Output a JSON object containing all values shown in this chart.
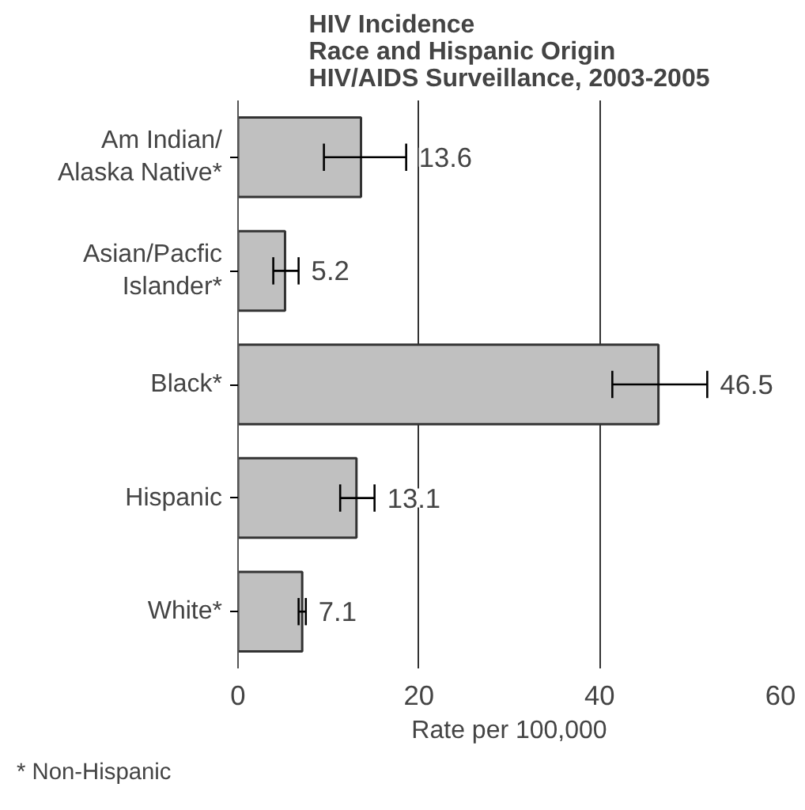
{
  "chart_data": {
    "type": "bar",
    "orientation": "horizontal",
    "title": "HIV Incidence\nRace and Hispanic Origin\nHIV/AIDS Surveillance, 2003-2005",
    "xlabel": "Rate per 100,000",
    "categories": [
      "Am Indian/\nAlaska Native*",
      "Asian/Pacfic\nIslander*",
      "Black*",
      "Hispanic",
      "White*"
    ],
    "values": [
      13.6,
      5.2,
      46.5,
      13.1,
      7.1
    ],
    "color": "#c0c0c0",
    "errors": [
      [
        9.5,
        18.6
      ],
      [
        3.9,
        6.7
      ],
      [
        41.4,
        51.9
      ],
      [
        11.3,
        15.1
      ],
      [
        6.7,
        7.5
      ]
    ],
    "data_labels": true,
    "xlim": [
      0,
      60
    ],
    "xticks": [
      0,
      20,
      40,
      60
    ],
    "grid": "x",
    "annotations": [
      "* Non-Hispanic"
    ]
  }
}
